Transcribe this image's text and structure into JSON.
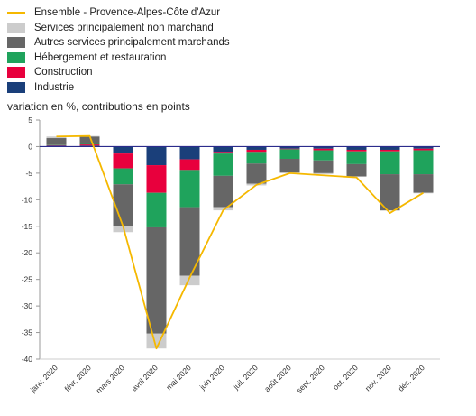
{
  "chart_data": {
    "type": "bar",
    "stacked": true,
    "ylabel": "variation en %, contributions en points",
    "ylim": [
      -40,
      5
    ],
    "yticks": [
      5,
      0,
      -5,
      -10,
      -15,
      -20,
      -25,
      -30,
      -35,
      -40
    ],
    "grid": false,
    "legend_position": "top-left",
    "categories": [
      "janv. 2020",
      "févr. 2020",
      "mars 2020",
      "avril 2020",
      "mai 2020",
      "juin 2020",
      "juil. 2020",
      "août 2020",
      "sept. 2020",
      "oct. 2020",
      "nov. 2020",
      "déc. 2020"
    ],
    "series": [
      {
        "name": "Industrie",
        "color": "#1a3f7a",
        "values": [
          0.2,
          0.2,
          -1.3,
          -3.5,
          -2.4,
          -1.0,
          -0.6,
          -0.4,
          -0.4,
          -0.6,
          -0.6,
          -0.4
        ]
      },
      {
        "name": "Construction",
        "color": "#e8003d",
        "values": [
          0.1,
          0.2,
          -2.8,
          -5.2,
          -2.0,
          -0.3,
          -0.4,
          -0.1,
          -0.3,
          -0.3,
          -0.3,
          -0.3
        ]
      },
      {
        "name": "Hébergement et restauration",
        "color": "#1fa35c",
        "values": [
          0.1,
          0.1,
          -3.0,
          -6.5,
          -7.0,
          -4.2,
          -2.2,
          -1.8,
          -1.9,
          -2.4,
          -4.3,
          -4.5
        ]
      },
      {
        "name": "Autres services principalement marchands",
        "color": "#666666",
        "values": [
          1.2,
          1.4,
          -7.8,
          -20.0,
          -12.9,
          -5.9,
          -3.8,
          -2.6,
          -2.4,
          -2.3,
          -6.8,
          -3.5
        ]
      },
      {
        "name": "Services principalement non marchand",
        "color": "#cccccc",
        "values": [
          0.3,
          0.1,
          -1.2,
          -2.8,
          -1.8,
          -0.6,
          -0.3,
          -0.1,
          -0.2,
          -0.1,
          -0.1,
          -0.1
        ]
      }
    ],
    "line": {
      "name": "Ensemble - Provence-Alpes-Côte d'Azur",
      "color": "#f5b800",
      "values": [
        1.9,
        2.0,
        -15.0,
        -38.0,
        -24.6,
        -12.0,
        -7.2,
        -5.0,
        -5.4,
        -5.8,
        -12.5,
        -8.7
      ]
    }
  }
}
